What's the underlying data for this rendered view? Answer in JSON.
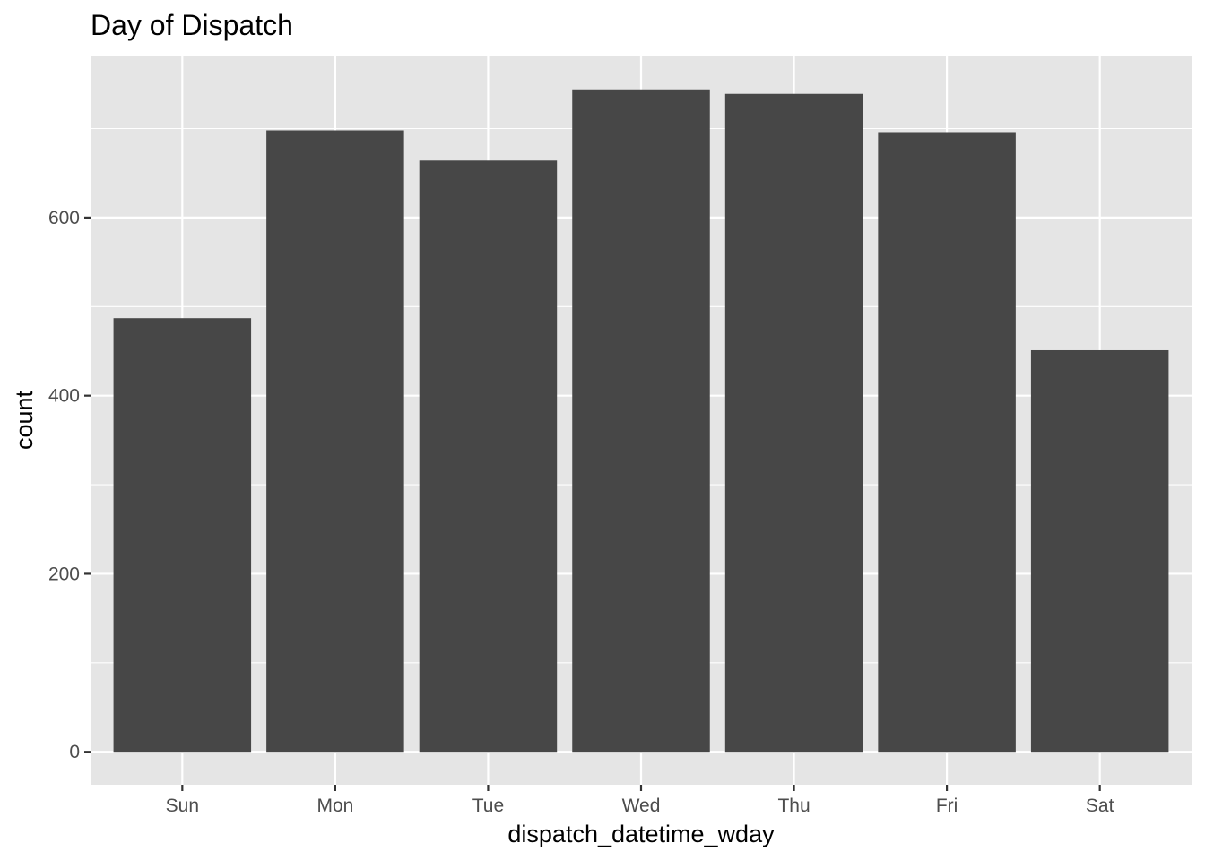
{
  "chart_data": {
    "type": "bar",
    "title": "Day of Dispatch",
    "xlabel": "dispatch_datetime_wday",
    "ylabel": "count",
    "categories": [
      "Sun",
      "Mon",
      "Tue",
      "Wed",
      "Thu",
      "Fri",
      "Sat"
    ],
    "values": [
      487,
      698,
      664,
      744,
      739,
      696,
      451
    ],
    "ylim": [
      -37,
      782
    ],
    "yticks": [
      0,
      200,
      400,
      600
    ],
    "grid": true,
    "legend": "none"
  },
  "colors": {
    "panel": "#e5e5e5",
    "grid": "#ffffff",
    "bar": "#474747",
    "tick": "#333333",
    "tick_label": "#4d4d4d"
  }
}
